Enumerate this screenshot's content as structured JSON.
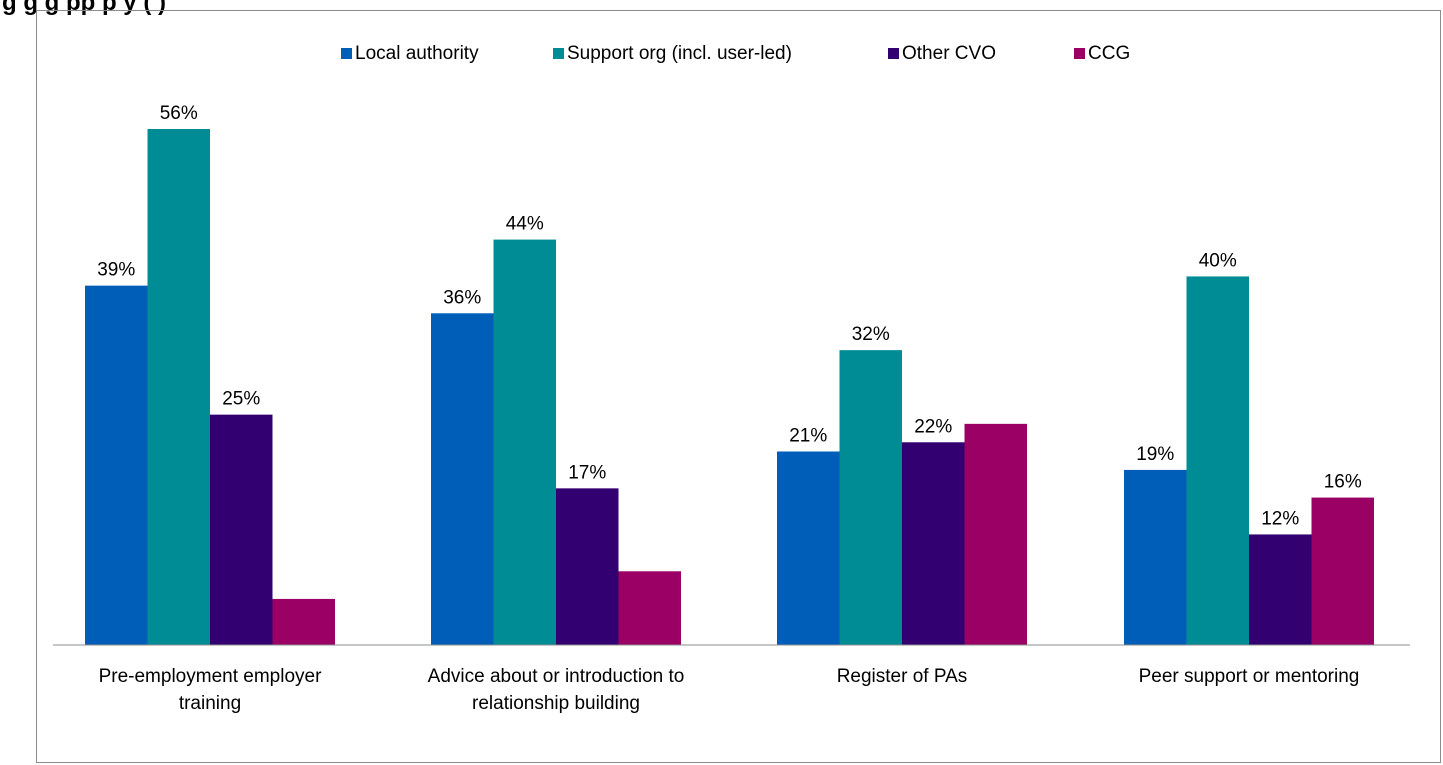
{
  "chart_data": {
    "type": "bar",
    "title": "g      g                g  pp             p  y    (    )",
    "categories": [
      [
        "Pre-employment employer",
        "training"
      ],
      [
        "Advice about or introduction to",
        "relationship building"
      ],
      [
        "Register of PAs"
      ],
      [
        "Peer support or mentoring"
      ]
    ],
    "series": [
      {
        "name": "Local authority",
        "color": "#005EB8",
        "values": [
          39,
          36,
          21,
          19
        ],
        "labels": [
          "39%",
          "36%",
          "21%",
          "19%"
        ]
      },
      {
        "name": "Support org (incl. user-led)",
        "color": "#008C95",
        "values": [
          56,
          44,
          32,
          40
        ],
        "labels": [
          "56%",
          "44%",
          "32%",
          "40%"
        ]
      },
      {
        "name": "Other CVO",
        "color": "#330072",
        "values": [
          25,
          17,
          22,
          12
        ],
        "labels": [
          "25%",
          "17%",
          "22%",
          "12%"
        ]
      },
      {
        "name": "CCG",
        "color": "#9B0064",
        "values": [
          5,
          8,
          24,
          16
        ],
        "labels": [
          "",
          "",
          "",
          "16%"
        ]
      }
    ],
    "ylim": [
      0,
      60
    ],
    "xlabel": "",
    "ylabel": "",
    "grid": false,
    "legend": "top-center"
  }
}
